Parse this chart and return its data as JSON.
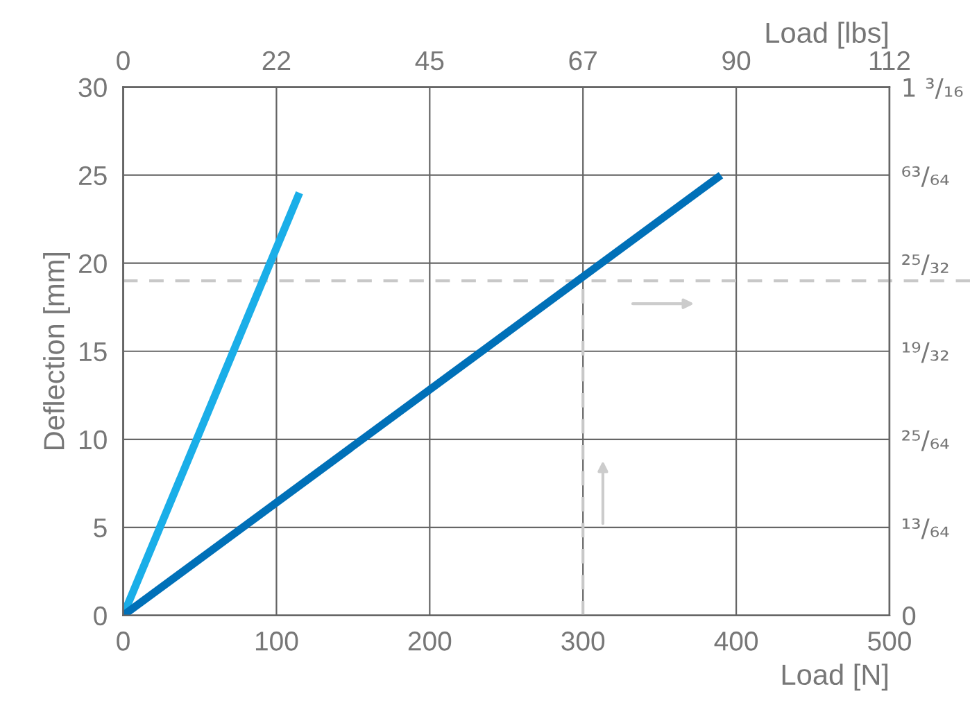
{
  "chart_data": {
    "type": "line",
    "xlabel": "Load [N]",
    "ylabel": "Deflection [mm]",
    "x2label": "Load [lbs]",
    "xlim": [
      0,
      500
    ],
    "xticks": [
      0,
      100,
      200,
      300,
      400,
      500
    ],
    "ylim": [
      0,
      30
    ],
    "yticks": [
      0,
      5,
      10,
      15,
      20,
      25,
      30
    ],
    "x2lim": [
      0,
      112.4
    ],
    "x2ticks": [
      {
        "value": 0,
        "label": "0"
      },
      {
        "value": 22.48,
        "label": "22"
      },
      {
        "value": 44.96,
        "label": "45"
      },
      {
        "value": 67.44,
        "label": "67"
      },
      {
        "value": 89.92,
        "label": "90"
      },
      {
        "value": 112.4,
        "label": "112"
      }
    ],
    "y2lim": [
      0,
      1.181
    ],
    "y2ticks": [
      {
        "value": 0,
        "label": "0"
      },
      {
        "value": 0.197,
        "label": "¹³/₆₄"
      },
      {
        "value": 0.394,
        "label": "²⁵/₆₄"
      },
      {
        "value": 0.591,
        "label": "¹⁹/₃₂"
      },
      {
        "value": 0.787,
        "label": "²⁵/₃₂"
      },
      {
        "value": 0.984,
        "label": "⁶³/₆₄"
      },
      {
        "value": 1.181,
        "label": "1 ³/₁₆"
      }
    ],
    "series": [
      {
        "color": "#1aaee8",
        "x": [
          0,
          115
        ],
        "values": [
          0,
          24
        ]
      },
      {
        "color": "#0070b8",
        "x": [
          0,
          390
        ],
        "values": [
          0,
          25
        ]
      },
      {
        "color": "#c8c8c8",
        "x": [
          300,
          300
        ],
        "values": [
          0,
          19
        ],
        "line_style": "dashed"
      }
    ],
    "ref_lines": [
      {
        "axis": "y",
        "value": 19,
        "color": "#c8c8c8",
        "line_style": "dashed"
      }
    ],
    "grid": true,
    "marker": "none"
  }
}
